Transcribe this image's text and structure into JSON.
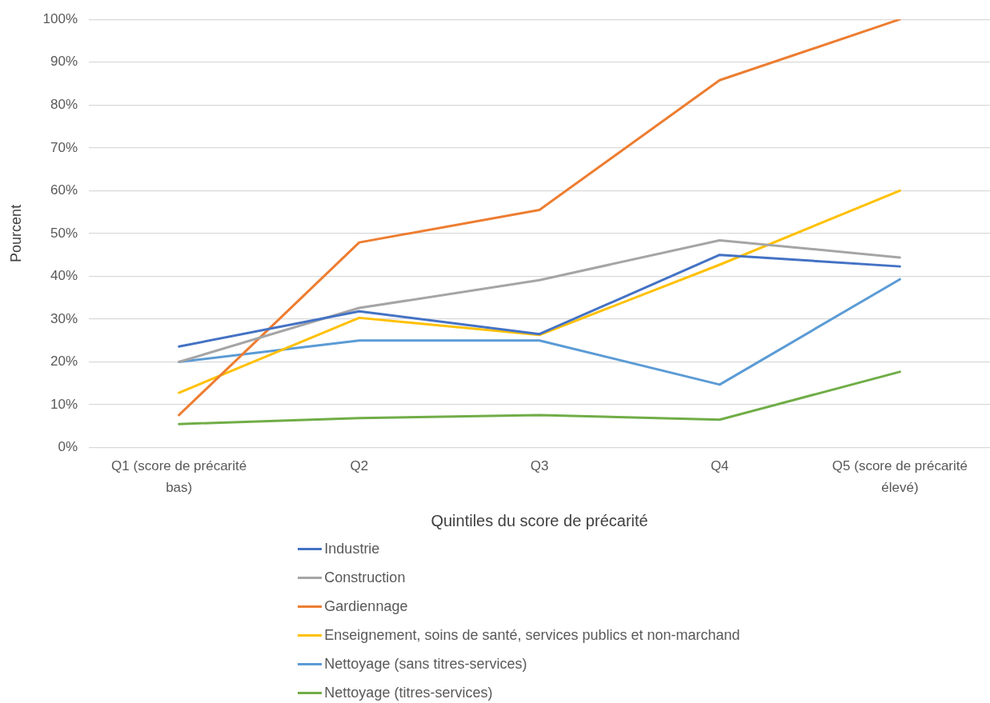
{
  "chart_data": {
    "type": "line",
    "categories": [
      "Q1 (score de précarité bas)",
      "Q2",
      "Q3",
      "Q4",
      "Q5 (score de précarité élevé)"
    ],
    "series": [
      {
        "name": "Industrie",
        "color": "#4472c4",
        "values": [
          23.6,
          31.8,
          26.5,
          45.0,
          42.3
        ]
      },
      {
        "name": "Construction",
        "color": "#a5a5a5",
        "values": [
          20.0,
          32.6,
          39.1,
          48.4,
          44.4
        ]
      },
      {
        "name": "Gardiennage",
        "color": "#ed7d31",
        "values": [
          7.6,
          47.9,
          55.5,
          85.8,
          100.0
        ]
      },
      {
        "name": "Enseignement, soins de santé, services publics et non-marchand",
        "color": "#ffc000",
        "values": [
          12.8,
          30.3,
          26.3,
          42.7,
          60.0
        ]
      },
      {
        "name": "Nettoyage (sans titres-services)",
        "color": "#5b9bd5",
        "values": [
          20.0,
          25.0,
          25.0,
          14.7,
          39.3
        ]
      },
      {
        "name": "Nettoyage (titres-services)",
        "color": "#70ad47",
        "values": [
          5.5,
          6.9,
          7.6,
          6.5,
          17.7
        ]
      }
    ],
    "xlabel": "Quintiles du score de précarité",
    "ylabel": "Pourcent",
    "ylim": [
      0,
      100
    ],
    "yticks": [
      {
        "value": 0,
        "label": "0%"
      },
      {
        "value": 10,
        "label": "10%"
      },
      {
        "value": 20,
        "label": "20%"
      },
      {
        "value": 30,
        "label": "30%"
      },
      {
        "value": 40,
        "label": "40%"
      },
      {
        "value": 50,
        "label": "50%"
      },
      {
        "value": 60,
        "label": "60%"
      },
      {
        "value": 70,
        "label": "70%"
      },
      {
        "value": 80,
        "label": "80%"
      },
      {
        "value": 90,
        "label": "90%"
      },
      {
        "value": 100,
        "label": "100%"
      }
    ],
    "grid": "y",
    "legend": "bottom",
    "marker": "none"
  }
}
